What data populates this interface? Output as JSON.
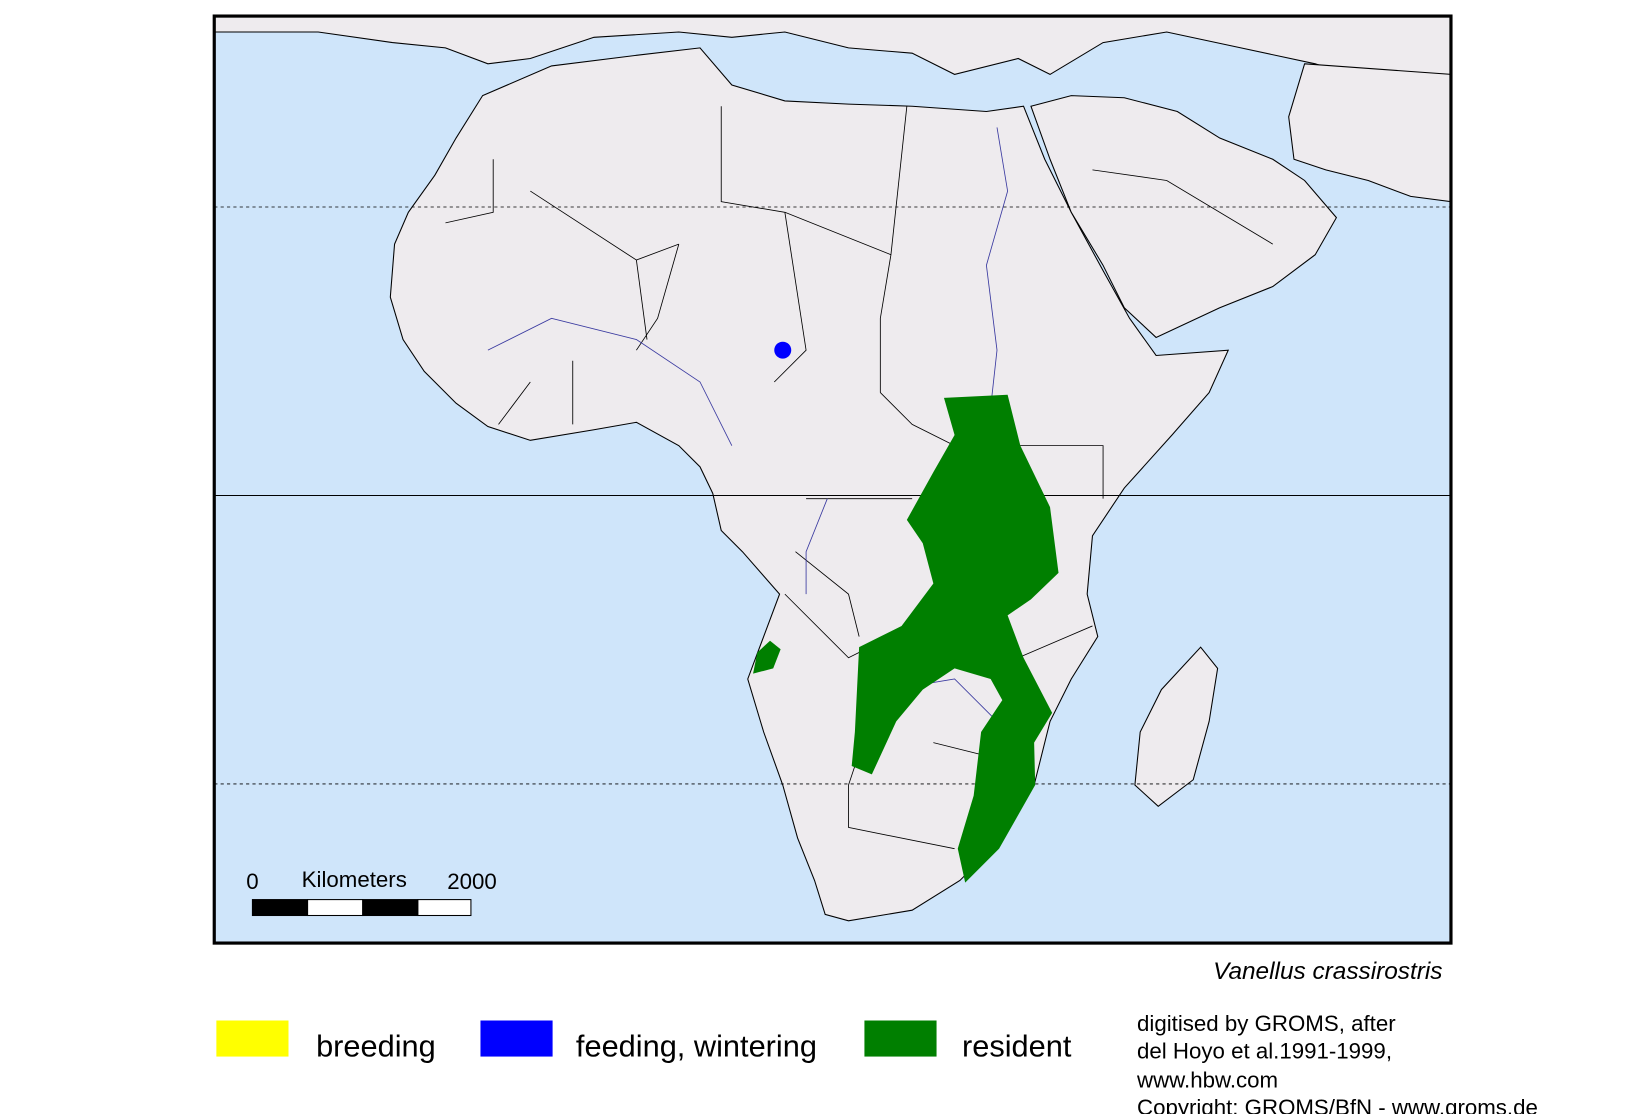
{
  "map": {
    "scale_bar": {
      "start": "0",
      "unit": "Kilometers",
      "end": "2000"
    },
    "species": "Vanellus crassirostris",
    "legend": [
      {
        "label": "breeding",
        "color": "#ffff00"
      },
      {
        "label": "feeding, wintering",
        "color": "#0000ff"
      },
      {
        "label": "resident",
        "color": "#007f00"
      }
    ],
    "credits": [
      "digitised by GROMS, after",
      "del Hoyo et al.1991-1999,",
      "www.hbw.com",
      "Copyright: GROMS/BfN - www.groms.de"
    ]
  }
}
